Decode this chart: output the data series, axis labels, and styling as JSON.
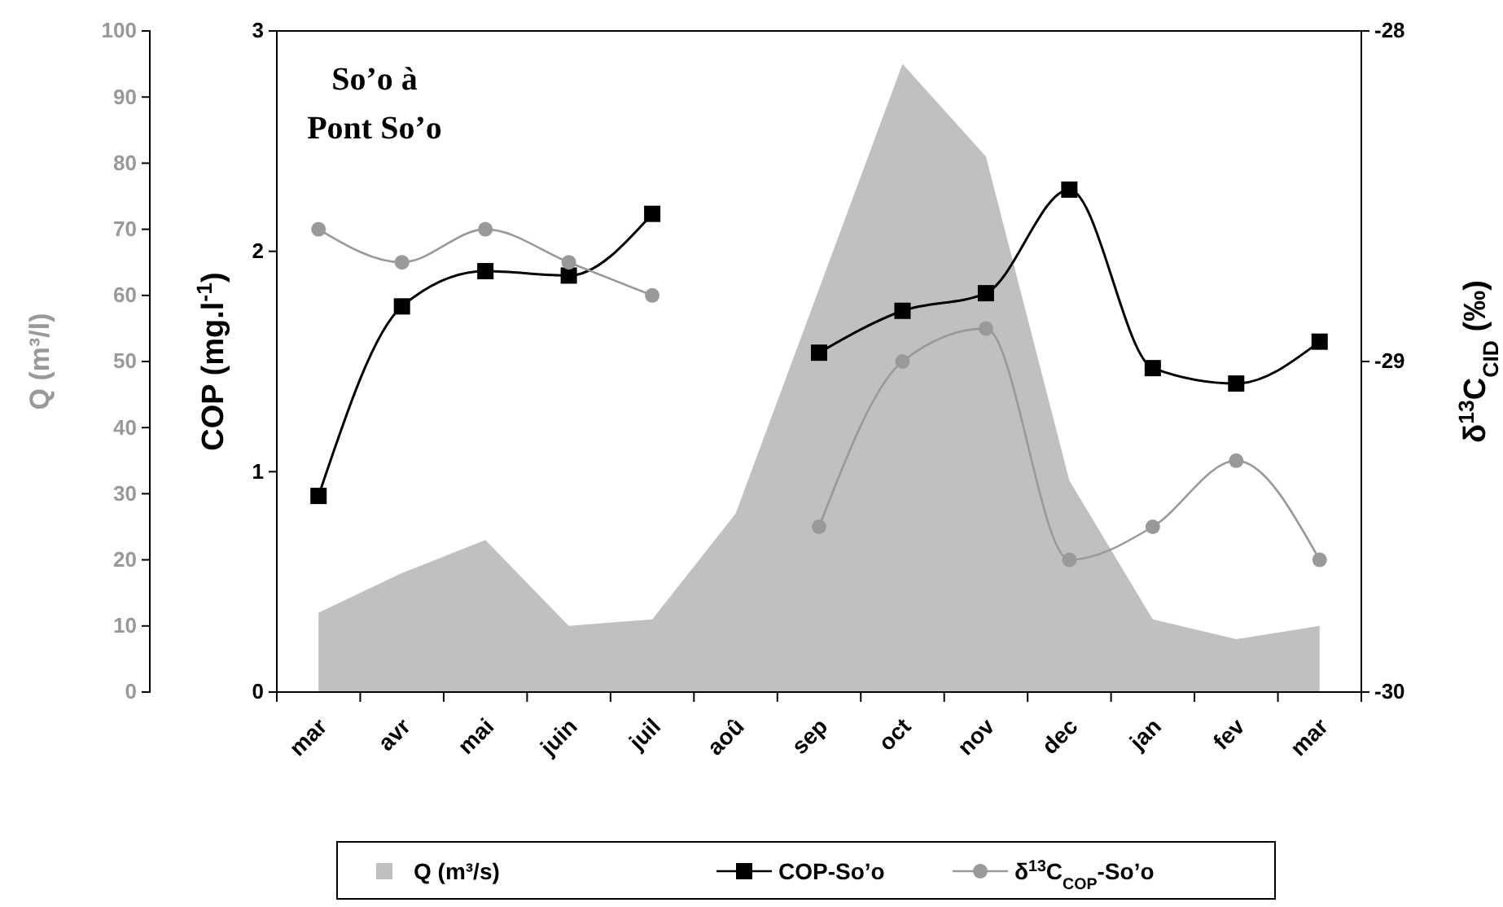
{
  "chart_data": {
    "type": "line",
    "title": "So’o à Pont So’o",
    "categories": [
      "mar",
      "avr",
      "mai",
      "juin",
      "juil",
      "aoû",
      "sep",
      "oct",
      "nov",
      "dec",
      "jan",
      "fev",
      "mar"
    ],
    "series": [
      {
        "name": "Q (m³/s)",
        "type": "area",
        "axis": "y",
        "color": "#c0c0c0",
        "values": [
          12,
          18,
          23,
          10,
          11,
          27,
          61,
          95,
          81,
          32,
          11,
          8,
          10
        ]
      },
      {
        "name": "COP-So’o",
        "type": "line",
        "axis": "y2",
        "color": "#000000",
        "marker": "square",
        "values": [
          0.89,
          1.75,
          1.91,
          1.89,
          2.17,
          null,
          1.54,
          1.73,
          1.81,
          2.28,
          1.47,
          1.4,
          1.59
        ]
      },
      {
        "name": "δ$^{13}$C$_{COP}$-So’o",
        "type": "line",
        "axis": "y3",
        "color": "#999999",
        "marker": "circle",
        "values": [
          -28.6,
          -28.7,
          -28.6,
          -28.7,
          -28.8,
          null,
          -29.5,
          -29,
          -28.9,
          -29.6,
          -29.5,
          -29.3,
          -29.6
        ]
      }
    ],
    "ylabel": "Q (m³/l)",
    "y2label": "COP (mg.l$^{-1}$)",
    "y3label": "δ$^{13}$C$_{CID}$ (‰)",
    "ylim": [
      0,
      100
    ],
    "yticks": [
      0,
      10,
      20,
      30,
      40,
      50,
      60,
      70,
      80,
      90,
      100
    ],
    "y2lim": [
      0,
      3
    ],
    "y2ticks": [
      0,
      1,
      2,
      3
    ],
    "y3lim": [
      -30,
      -28
    ],
    "y3ticks": [
      -30,
      -29,
      -28
    ],
    "legend": "bottom"
  }
}
